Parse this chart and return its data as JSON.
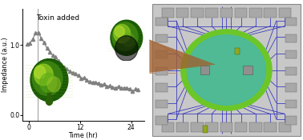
{
  "fig_width": 3.78,
  "fig_height": 1.75,
  "dpi": 100,
  "left_panel_title": "Toxin added",
  "xlabel": "Time (hr)",
  "ylabel": "Impedance (a.u.)",
  "yticks": [
    0.0,
    1.0
  ],
  "xticks": [
    0,
    12,
    24
  ],
  "vline_x": 2.0,
  "curve_color": "#808080",
  "marker": "^",
  "markersize": 3.0,
  "linewidth": 0.9,
  "chip_bg": "#c8c8c8",
  "chip_border": "#a0a0a0",
  "circle_green": "#6cc628",
  "circle_teal": "#4ab8a8",
  "wire_color": "#3030bb",
  "pad_color": "#a8a8a8",
  "pad_edge": "#707070",
  "brown_color": "#a06030",
  "title_fontsize": 6.5,
  "axis_fontsize": 5.8,
  "tick_fontsize": 5.5
}
